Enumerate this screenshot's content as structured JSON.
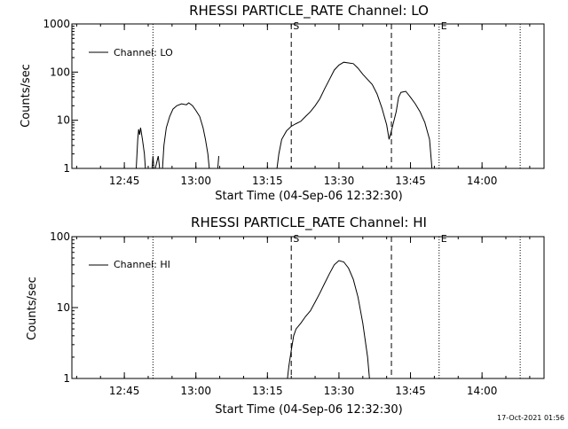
{
  "footer": {
    "timestamp": "17-Oct-2021 01:56"
  },
  "chart_data": [
    {
      "type": "line",
      "title": "RHESSI PARTICLE_RATE Channel: LO",
      "xlabel": "Start Time (04-Sep-06 12:32:30)",
      "ylabel": "Counts/sec",
      "yscale": "log",
      "ylim": [
        1,
        1000
      ],
      "xlim": [
        "12:34",
        "14:13"
      ],
      "y_ticks": [
        1,
        10,
        100,
        1000
      ],
      "y_tick_labels": [
        "1",
        "10",
        "100",
        "1000"
      ],
      "x_ticks": [
        "12:45",
        "13:00",
        "13:15",
        "13:30",
        "13:45",
        "14:00"
      ],
      "legend": {
        "position": "top-left",
        "entries": [
          "Channel: LO"
        ]
      },
      "vlines": [
        {
          "x": "12:51",
          "style": "dotted"
        },
        {
          "x": "13:20",
          "style": "dashed",
          "label": "S"
        },
        {
          "x": "13:41",
          "style": "dashed",
          "label": ""
        },
        {
          "x": "13:51",
          "style": "dotted",
          "label": "E"
        },
        {
          "x": "14:08",
          "style": "dotted"
        }
      ],
      "series": [
        {
          "name": "Channel: LO",
          "segments": [
            [
              [
                "12:47.5",
                1
              ],
              [
                "12:47.8",
                4
              ],
              [
                "12:48.0",
                6.5
              ],
              [
                "12:48.2",
                5
              ],
              [
                "12:48.4",
                7
              ],
              [
                "12:48.8",
                4
              ],
              [
                "12:49.2",
                2
              ],
              [
                "12:49.4",
                1
              ]
            ],
            [
              [
                "12:50.8",
                1
              ],
              [
                "12:51.0",
                1.8
              ],
              [
                "12:51.2",
                1
              ]
            ],
            [
              [
                "12:51.5",
                1
              ],
              [
                "12:52.1",
                1.8
              ],
              [
                "12:52.4",
                1
              ]
            ],
            [
              [
                "12:53.0",
                1
              ],
              [
                "12:53.3",
                3
              ],
              [
                "12:53.8",
                7
              ],
              [
                "12:54.5",
                12
              ],
              [
                "12:55.2",
                17
              ],
              [
                "12:56",
                20
              ],
              [
                "12:57",
                22
              ],
              [
                "12:58",
                21
              ],
              [
                "12:58.5",
                23
              ],
              [
                "12:59.3",
                20
              ],
              [
                "13:00",
                16
              ],
              [
                "13:00.8",
                12
              ],
              [
                "13:01.5",
                7
              ],
              [
                "13:02",
                4
              ],
              [
                "13:02.5",
                2
              ],
              [
                "13:02.8",
                1
              ]
            ],
            [
              [
                "13:04.6",
                1
              ],
              [
                "13:04.8",
                1.8
              ]
            ],
            [
              [
                "13:17.0",
                1
              ],
              [
                "13:17.4",
                2
              ],
              [
                "13:18",
                4
              ],
              [
                "13:19",
                6
              ],
              [
                "13:20",
                7.5
              ],
              [
                "13:21",
                8.5
              ],
              [
                "13:22",
                9.5
              ],
              [
                "13:23",
                12
              ],
              [
                "13:24",
                15
              ],
              [
                "13:25",
                20
              ],
              [
                "13:26",
                28
              ],
              [
                "13:27",
                45
              ],
              [
                "13:28",
                70
              ],
              [
                "13:29",
                110
              ],
              [
                "13:30",
                140
              ],
              [
                "13:31",
                160
              ],
              [
                "13:32",
                155
              ],
              [
                "13:33",
                150
              ],
              [
                "13:34",
                120
              ],
              [
                "13:35",
                90
              ],
              [
                "13:36",
                70
              ],
              [
                "13:37",
                55
              ],
              [
                "13:38",
                35
              ],
              [
                "13:39",
                18
              ],
              [
                "13:40",
                8
              ],
              [
                "13:40.5",
                4
              ],
              [
                "13:41",
                6
              ],
              [
                "13:42",
                15
              ],
              [
                "13:42.5",
                30
              ],
              [
                "13:43",
                38
              ],
              [
                "13:44",
                40
              ],
              [
                "13:45",
                30
              ],
              [
                "13:46",
                22
              ],
              [
                "13:47",
                15
              ],
              [
                "13:48",
                9
              ],
              [
                "13:49",
                4
              ],
              [
                "13:49.5",
                1
              ]
            ]
          ]
        }
      ]
    },
    {
      "type": "line",
      "title": "RHESSI PARTICLE_RATE Channel: HI",
      "xlabel": "Start Time (04-Sep-06 12:32:30)",
      "ylabel": "Counts/sec",
      "yscale": "log",
      "ylim": [
        1,
        100
      ],
      "xlim": [
        "12:34",
        "14:13"
      ],
      "y_ticks": [
        1,
        10,
        100
      ],
      "y_tick_labels": [
        "1",
        "10",
        "100"
      ],
      "x_ticks": [
        "12:45",
        "13:00",
        "13:15",
        "13:30",
        "13:45",
        "14:00"
      ],
      "legend": {
        "position": "top-left",
        "entries": [
          "Channel: HI"
        ]
      },
      "vlines": [
        {
          "x": "12:51",
          "style": "dotted"
        },
        {
          "x": "13:20",
          "style": "dashed",
          "label": "S"
        },
        {
          "x": "13:41",
          "style": "dashed",
          "label": ""
        },
        {
          "x": "13:51",
          "style": "dotted",
          "label": "E"
        },
        {
          "x": "14:08",
          "style": "dotted"
        }
      ],
      "series": [
        {
          "name": "Channel: HI",
          "segments": [
            [
              [
                "13:19.2",
                1
              ],
              [
                "13:19.5",
                1.5
              ],
              [
                "13:20",
                2.5
              ],
              [
                "13:20.5",
                4
              ],
              [
                "13:21",
                5
              ],
              [
                "13:22",
                6
              ],
              [
                "13:23",
                7.5
              ],
              [
                "13:24",
                9
              ],
              [
                "13:25",
                12
              ],
              [
                "13:26",
                16
              ],
              [
                "13:27",
                22
              ],
              [
                "13:28",
                30
              ],
              [
                "13:29",
                40
              ],
              [
                "13:30",
                46
              ],
              [
                "13:31",
                44
              ],
              [
                "13:32",
                36
              ],
              [
                "13:33",
                25
              ],
              [
                "13:34",
                14
              ],
              [
                "13:35",
                6
              ],
              [
                "13:36",
                2
              ],
              [
                "13:36.4",
                1
              ]
            ]
          ]
        }
      ]
    }
  ]
}
